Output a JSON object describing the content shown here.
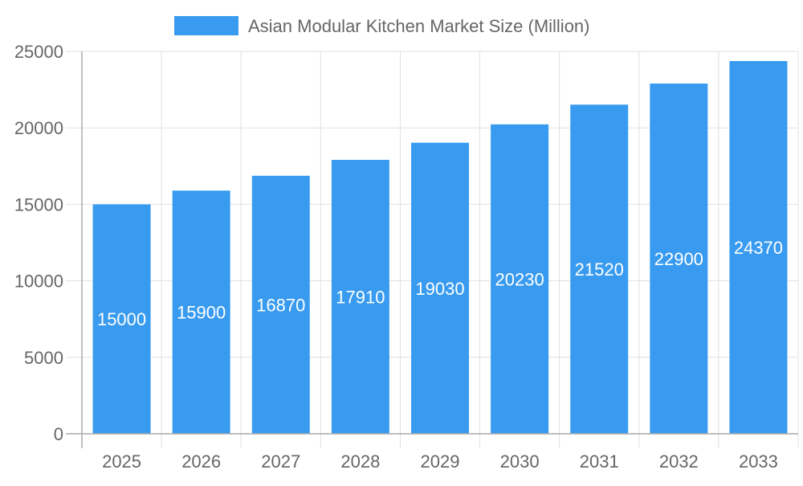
{
  "chart_data": {
    "type": "bar",
    "title": "",
    "xlabel": "",
    "ylabel": "",
    "categories": [
      "2025",
      "2026",
      "2027",
      "2028",
      "2029",
      "2030",
      "2031",
      "2032",
      "2033"
    ],
    "series": [
      {
        "name": "Asian Modular Kitchen Market Size (Million)",
        "values": [
          15000,
          15900,
          16870,
          17910,
          19030,
          20230,
          21520,
          22900,
          24370
        ],
        "color": "#389bf0"
      }
    ],
    "ylim": [
      0,
      25000
    ],
    "yticks": [
      0,
      5000,
      10000,
      15000,
      20000,
      25000
    ],
    "grid": true,
    "legend": "top-center",
    "data_labels": true
  }
}
